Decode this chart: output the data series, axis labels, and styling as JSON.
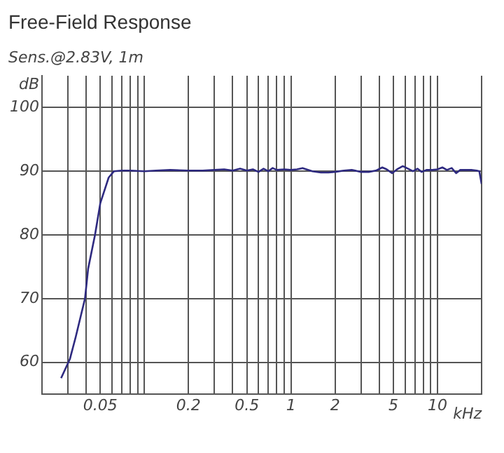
{
  "chart_data": {
    "type": "line",
    "title": "Free-Field Response",
    "subtitle": "Sens.@2.83V, 1m",
    "xlabel": "kHz",
    "ylabel": "dB",
    "log": "x",
    "xlim": [
      0.02,
      20
    ],
    "xticks": [
      {
        "value": 0.03,
        "label": null
      },
      {
        "value": 0.04,
        "label": null
      },
      0.05,
      {
        "value": 0.06,
        "label": null
      },
      {
        "value": 0.07,
        "label": null
      },
      {
        "value": 0.08,
        "label": null
      },
      {
        "value": 0.09,
        "label": null
      },
      {
        "value": 0.1,
        "label": null
      },
      0.2,
      {
        "value": 0.3,
        "label": null
      },
      {
        "value": 0.4,
        "label": null
      },
      0.5,
      {
        "value": 0.6,
        "label": null
      },
      {
        "value": 0.7,
        "label": null
      },
      {
        "value": 0.8,
        "label": null
      },
      {
        "value": 0.9,
        "label": null
      },
      1,
      2,
      {
        "value": 3,
        "label": null
      },
      {
        "value": 4,
        "label": null
      },
      5,
      {
        "value": 6,
        "label": null
      },
      {
        "value": 7,
        "label": null
      },
      {
        "value": 8,
        "label": null
      },
      {
        "value": 9,
        "label": null
      },
      10,
      {
        "value": 20,
        "label": null
      }
    ],
    "ylim": [
      55,
      105
    ],
    "yticks": [
      60,
      70,
      80,
      90,
      100
    ],
    "grid": true,
    "marker": "none",
    "line_style": "solid",
    "x": [
      0.027,
      0.031,
      0.034,
      0.0393,
      0.0413,
      0.046,
      0.05,
      0.057,
      0.062,
      0.07,
      0.08,
      0.1,
      0.12,
      0.15,
      0.2,
      0.25,
      0.3,
      0.35,
      0.4,
      0.45,
      0.5,
      0.55,
      0.6,
      0.65,
      0.7,
      0.75,
      0.8,
      0.9,
      1,
      1.1,
      1.2,
      1.4,
      1.6,
      1.8,
      2,
      2.3,
      2.6,
      3,
      3.4,
      3.8,
      4.2,
      4.5,
      4.9,
      5.3,
      5.8,
      6.3,
      6.8,
      7.3,
      7.8,
      8.4,
      9.2,
      10,
      10.8,
      11.6,
      12.5,
      13.4,
      14.3,
      15.5,
      17,
      18.5,
      19.3,
      20
    ],
    "series": [
      {
        "color": "#2e2a80",
        "values": [
          57.5,
          60.5,
          64,
          70,
          74.7,
          80,
          85,
          89,
          90,
          90.1,
          90.1,
          90,
          90.1,
          90.2,
          90.1,
          90.1,
          90.2,
          90.3,
          90.1,
          90.4,
          90.1,
          90.3,
          89.9,
          90.4,
          90,
          90.5,
          90.2,
          90.3,
          90.2,
          90.3,
          90.5,
          90,
          89.8,
          89.8,
          89.9,
          90.1,
          90.2,
          89.9,
          89.9,
          90.1,
          90.6,
          90.3,
          89.7,
          90.3,
          90.8,
          90.4,
          90,
          90.4,
          89.9,
          90.2,
          90.2,
          90.3,
          90.6,
          90.2,
          90.5,
          89.7,
          90.2,
          90.2,
          90.2,
          90.1,
          90,
          88
        ]
      }
    ]
  }
}
